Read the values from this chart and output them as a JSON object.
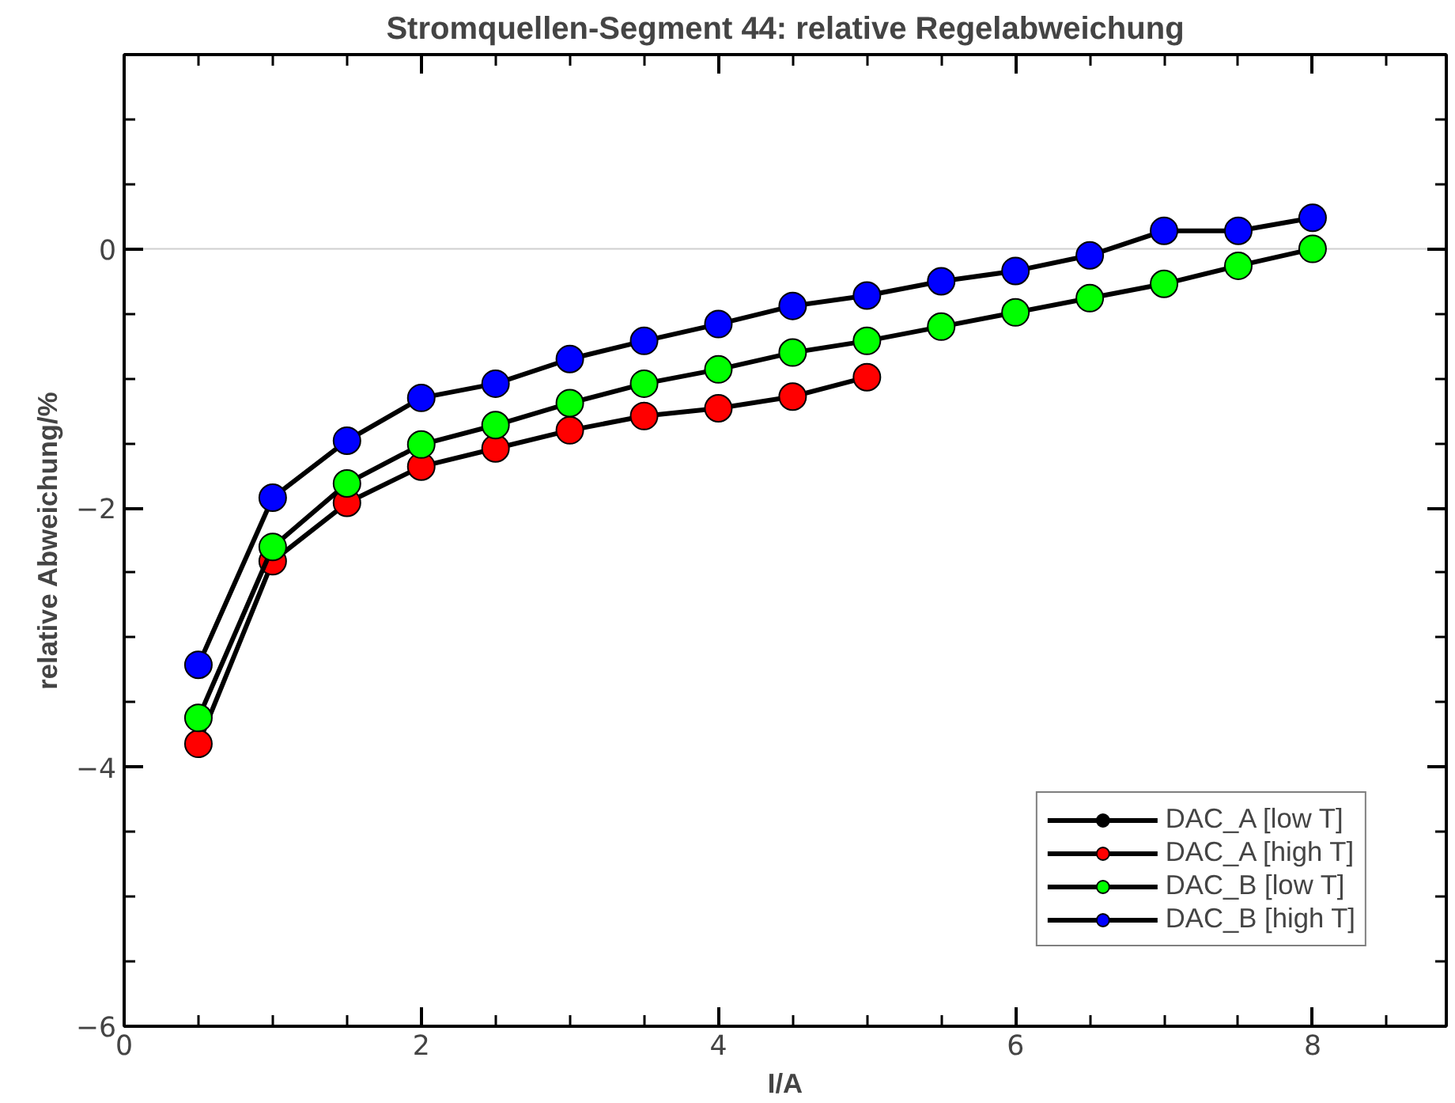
{
  "chart_data": {
    "type": "line",
    "title": "Stromquellen-Segment 44: relative Regelabweichung",
    "xlabel": "I/A",
    "ylabel": "relative Abweichung/%",
    "x": [
      0.5,
      1,
      1.5,
      2,
      2.5,
      3,
      3.5,
      4,
      4.5,
      5,
      5.5,
      6,
      6.5,
      7,
      7.5,
      8
    ],
    "series": [
      {
        "name": "DAC_A [low T]",
        "color": "#000000",
        "values": [
          null,
          null,
          null,
          null,
          null,
          null,
          null,
          null,
          null,
          null,
          null,
          null,
          null,
          null,
          null,
          null
        ]
      },
      {
        "name": "DAC_A [high T]",
        "color": "#ff0000",
        "values": [
          -3.82,
          -2.41,
          -1.96,
          -1.68,
          -1.54,
          -1.4,
          -1.29,
          -1.23,
          -1.14,
          -0.99,
          null,
          null,
          null,
          null,
          null,
          null
        ]
      },
      {
        "name": "DAC_B [low T]",
        "color": "#00ff00",
        "values": [
          -3.62,
          -2.3,
          -1.81,
          -1.51,
          -1.36,
          -1.19,
          -1.04,
          -0.93,
          -0.8,
          -0.71,
          -0.6,
          -0.49,
          -0.38,
          -0.27,
          -0.13,
          0.0
        ]
      },
      {
        "name": "DAC_B [high T]",
        "color": "#0000ff",
        "values": [
          -3.21,
          -1.92,
          -1.48,
          -1.15,
          -1.04,
          -0.85,
          -0.71,
          -0.58,
          -0.44,
          -0.36,
          -0.25,
          -0.17,
          -0.05,
          0.14,
          0.14,
          0.24
        ]
      }
    ],
    "xlim": [
      0,
      8.9
    ],
    "ylim": [
      -6,
      1.5
    ],
    "xticks": [
      0,
      {
        "value": 0.5,
        "label": null
      },
      {
        "value": 1,
        "label": null
      },
      {
        "value": 1.5,
        "label": null
      },
      2,
      {
        "value": 2.5,
        "label": null
      },
      {
        "value": 3,
        "label": null
      },
      {
        "value": 3.5,
        "label": null
      },
      4,
      {
        "value": 4.5,
        "label": null
      },
      {
        "value": 5,
        "label": null
      },
      {
        "value": 5.5,
        "label": null
      },
      6,
      {
        "value": 6.5,
        "label": null
      },
      {
        "value": 7,
        "label": null
      },
      {
        "value": 7.5,
        "label": null
      },
      8,
      {
        "value": 8.5,
        "label": null
      }
    ],
    "yticks": [
      -6,
      {
        "value": -5.5,
        "label": null
      },
      {
        "value": -5,
        "label": null
      },
      {
        "value": -4.5,
        "label": null
      },
      -4,
      {
        "value": -3.5,
        "label": null
      },
      {
        "value": -3,
        "label": null
      },
      {
        "value": -2.5,
        "label": null
      },
      -2,
      {
        "value": -1.5,
        "label": null
      },
      {
        "value": -1,
        "label": null
      },
      {
        "value": -0.5,
        "label": null
      },
      0,
      {
        "value": 0.5,
        "label": null
      },
      {
        "value": 1,
        "label": null
      }
    ],
    "ref_lines": [
      {
        "axis": "y",
        "value": 0,
        "color": "#d0d0d0"
      }
    ],
    "grid": false,
    "legend": "bottom right",
    "marker": "circle",
    "line_style": "solid"
  }
}
